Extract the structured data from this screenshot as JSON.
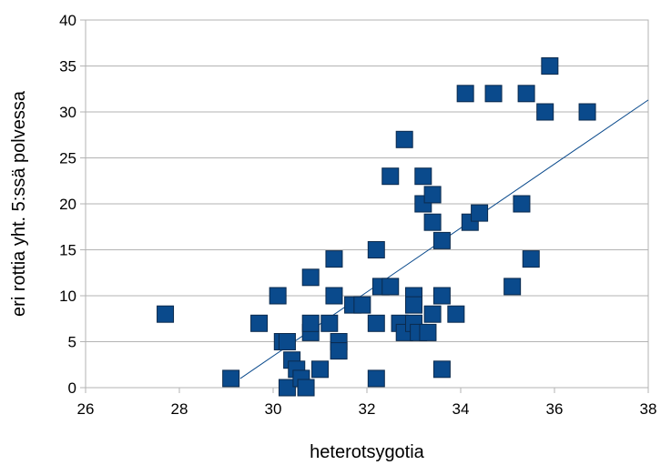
{
  "chart_data": {
    "type": "scatter",
    "xlabel": "heterotsygotia",
    "ylabel": "eri rottia yht. 5:ssä polvessa",
    "xlim": [
      26,
      38
    ],
    "ylim": [
      0,
      40
    ],
    "xticks": [
      26,
      28,
      30,
      32,
      34,
      36,
      38
    ],
    "yticks": [
      0,
      5,
      10,
      15,
      20,
      25,
      30,
      35,
      40
    ],
    "grid": "horizontal",
    "legend": "none",
    "marker": "square",
    "marker_color": "#0a4a8c",
    "trendline": {
      "type": "linear",
      "x": [
        29.3,
        38
      ],
      "y": [
        1,
        31.3
      ],
      "color": "#0a4a8c"
    },
    "series": [
      {
        "points": [
          [
            27.7,
            8
          ],
          [
            29.1,
            1
          ],
          [
            29.7,
            7
          ],
          [
            30.1,
            10
          ],
          [
            30.2,
            5
          ],
          [
            30.3,
            0
          ],
          [
            30.3,
            5
          ],
          [
            30.4,
            3
          ],
          [
            30.5,
            2
          ],
          [
            30.6,
            1
          ],
          [
            30.7,
            0
          ],
          [
            30.8,
            6
          ],
          [
            30.8,
            7
          ],
          [
            30.8,
            12
          ],
          [
            31.0,
            2
          ],
          [
            31.2,
            7
          ],
          [
            31.3,
            10
          ],
          [
            31.3,
            14
          ],
          [
            31.4,
            5
          ],
          [
            31.4,
            4
          ],
          [
            31.7,
            9
          ],
          [
            31.9,
            9
          ],
          [
            32.2,
            15
          ],
          [
            32.2,
            7
          ],
          [
            32.2,
            1
          ],
          [
            32.3,
            11
          ],
          [
            32.5,
            11
          ],
          [
            32.5,
            23
          ],
          [
            32.7,
            7
          ],
          [
            32.8,
            27
          ],
          [
            32.8,
            6
          ],
          [
            33.0,
            10
          ],
          [
            33.0,
            9
          ],
          [
            33.0,
            7
          ],
          [
            33.1,
            6
          ],
          [
            33.2,
            23
          ],
          [
            33.2,
            20
          ],
          [
            33.3,
            6
          ],
          [
            33.4,
            21
          ],
          [
            33.4,
            18
          ],
          [
            33.4,
            8
          ],
          [
            33.6,
            16
          ],
          [
            33.6,
            10
          ],
          [
            33.6,
            2
          ],
          [
            33.9,
            8
          ],
          [
            34.1,
            32
          ],
          [
            34.2,
            18
          ],
          [
            34.4,
            19
          ],
          [
            34.7,
            32
          ],
          [
            35.1,
            11
          ],
          [
            35.3,
            20
          ],
          [
            35.4,
            32
          ],
          [
            35.5,
            14
          ],
          [
            35.8,
            30
          ],
          [
            35.9,
            35
          ],
          [
            36.7,
            30
          ]
        ]
      }
    ]
  }
}
